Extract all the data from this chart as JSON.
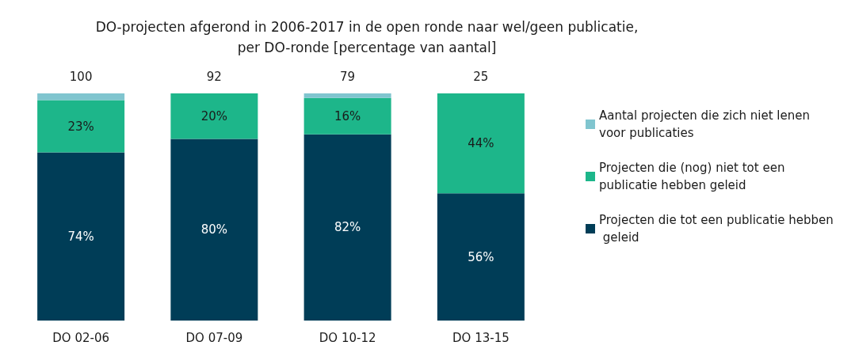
{
  "chart_data": {
    "type": "bar",
    "title": "DO-projecten afgerond in 2006-2017 in de open ronde naar wel/geen publicatie,\nper DO-ronde [percentage van aantal]",
    "categories": [
      "DO 02-06",
      "DO 07-09",
      "DO 10-12",
      "DO 13-15"
    ],
    "stacked": true,
    "legend": "right",
    "annotations": [
      {
        "text": "100",
        "x": "DO 02-06",
        "y": 100
      },
      {
        "text": "92",
        "x": "DO 07-09",
        "y": 100
      },
      {
        "text": "79",
        "x": "DO 10-12",
        "y": 100
      },
      {
        "text": "25",
        "x": "DO 13-15",
        "y": 100
      }
    ],
    "series": [
      {
        "name": "Projecten die tot een publicatie hebben geleid",
        "color": "#003d57",
        "values": [
          74,
          80,
          82,
          56
        ],
        "value_labels": [
          "74%",
          "80%",
          "82%",
          "56%"
        ]
      },
      {
        "name": "Projecten die (nog) niet tot een publicatie hebben geleid",
        "color": "#1db68a",
        "values": [
          23,
          20,
          16,
          44
        ],
        "value_labels": [
          "23%",
          "20%",
          "16%",
          "44%"
        ]
      },
      {
        "name": "Aantal projecten die zich niet lenen voor publicaties",
        "color": "#80c5cf",
        "values": [
          3,
          0,
          2,
          0
        ]
      }
    ]
  }
}
